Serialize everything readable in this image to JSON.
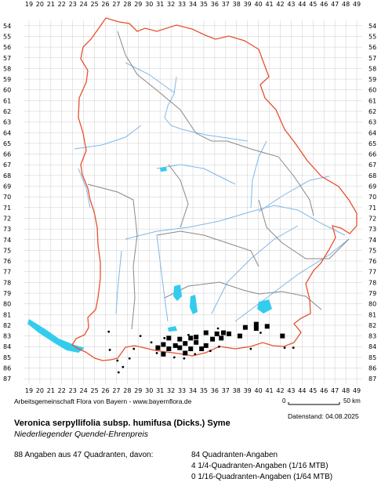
{
  "x_ticks": [
    "19",
    "20",
    "21",
    "22",
    "23",
    "24",
    "25",
    "26",
    "27",
    "28",
    "29",
    "30",
    "31",
    "32",
    "33",
    "34",
    "35",
    "36",
    "37",
    "38",
    "39",
    "40",
    "41",
    "42",
    "43",
    "44",
    "45",
    "46",
    "47",
    "48",
    "49"
  ],
  "y_ticks": [
    "54",
    "55",
    "56",
    "57",
    "58",
    "59",
    "60",
    "61",
    "62",
    "63",
    "64",
    "65",
    "66",
    "67",
    "68",
    "69",
    "70",
    "71",
    "72",
    "73",
    "74",
    "75",
    "76",
    "77",
    "78",
    "79",
    "80",
    "81",
    "82",
    "83",
    "84",
    "85",
    "86",
    "87"
  ],
  "credit": "Arbeitsgemeinschaft Flora von Bayern - www.bayernflora.de",
  "scale": {
    "start": "0",
    "end": "50 km"
  },
  "date_label": "Datenstand: 04.08.2025",
  "species": {
    "scientific": "Veronica serpyllifolia subsp. humifusa (Dicks.) Syme",
    "common": "Niederliegender Quendel-Ehrenpreis"
  },
  "stats": {
    "summary": "88 Angaben aus 47 Quadranten, davon:",
    "quadrant": "84 Quadranten-Angaben",
    "q16": "4 1/4-Quadranten-Angaben (1/16 MTB)",
    "q64": "0 1/16-Quadranten-Angaben (1/64 MTB)"
  },
  "colors": {
    "border": "#e8502d",
    "districts": "#888888",
    "rivers": "#7fb8e8",
    "lakes": "#33ccee",
    "grid": "#cccccc"
  },
  "squares": [
    [
      39.8,
      81.9
    ],
    [
      40.8,
      82.1
    ],
    [
      38.8,
      82.2
    ],
    [
      39.8,
      82.3
    ],
    [
      35.2,
      82.7
    ],
    [
      36.2,
      82.8
    ],
    [
      36.8,
      82.7
    ],
    [
      37.3,
      82.8
    ],
    [
      38.3,
      83.0
    ],
    [
      34.3,
      83.1
    ],
    [
      35.8,
      83.3
    ],
    [
      36.6,
      83.2
    ],
    [
      31.8,
      83.2
    ],
    [
      32.8,
      83.3
    ],
    [
      33.8,
      83.2
    ],
    [
      42.2,
      83.0
    ],
    [
      31.3,
      83.8
    ],
    [
      32.4,
      83.9
    ],
    [
      33.3,
      83.7
    ],
    [
      34.3,
      83.6
    ],
    [
      35.2,
      83.9
    ],
    [
      30.8,
      84.1
    ],
    [
      31.8,
      84.2
    ],
    [
      32.8,
      84.1
    ],
    [
      33.8,
      84.2
    ],
    [
      34.8,
      84.2
    ],
    [
      31.3,
      84.7
    ],
    [
      33.3,
      84.6
    ]
  ],
  "dots": [
    [
      26.3,
      82.6
    ],
    [
      29.2,
      83.0
    ],
    [
      30.2,
      83.6
    ],
    [
      30.7,
      84.6
    ],
    [
      32.3,
      85.0
    ],
    [
      33.2,
      85.1
    ],
    [
      34.2,
      84.7
    ],
    [
      35.6,
      84.4
    ],
    [
      36.4,
      84.0
    ],
    [
      27.1,
      85.3
    ],
    [
      27.6,
      85.9
    ],
    [
      27.2,
      86.4
    ],
    [
      28.2,
      85.1
    ],
    [
      28.6,
      84.2
    ],
    [
      26.4,
      84.3
    ],
    [
      39.3,
      84.2
    ],
    [
      42.4,
      84.1
    ],
    [
      43.2,
      84.1
    ],
    [
      40.2,
      82.7
    ],
    [
      36.3,
      82.3
    ],
    [
      33.6,
      82.9
    ],
    [
      31.4,
      83.2
    ]
  ]
}
